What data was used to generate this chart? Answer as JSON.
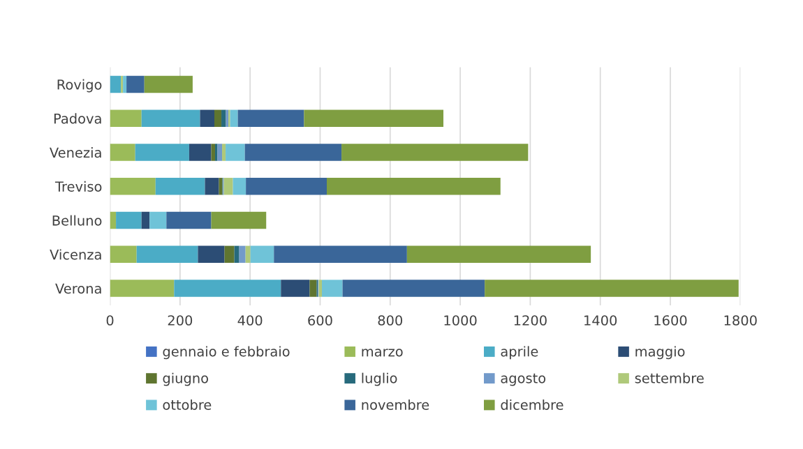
{
  "chart_data": {
    "type": "bar",
    "orientation": "horizontal",
    "stacked": true,
    "categories": [
      "Rovigo",
      "Padova",
      "Venezia",
      "Treviso",
      "Belluno",
      "Vicenza",
      "Verona"
    ],
    "series": [
      {
        "name": "gennaio e febbraio",
        "color": "#4472c4",
        "values": [
          0,
          0,
          0,
          0,
          0,
          0,
          0
        ]
      },
      {
        "name": "marzo",
        "color": "#9bbb59",
        "values": [
          0,
          90,
          72,
          130,
          17,
          76,
          183
        ]
      },
      {
        "name": "aprile",
        "color": "#4bacc6",
        "values": [
          31,
          167,
          154,
          141,
          73,
          175,
          305
        ]
      },
      {
        "name": "maggio",
        "color": "#2c4d75",
        "values": [
          0,
          41,
          63,
          40,
          23,
          76,
          82
        ]
      },
      {
        "name": "giugno",
        "color": "#5f7530",
        "values": [
          0,
          20,
          11,
          10,
          0,
          28,
          20
        ]
      },
      {
        "name": "luglio",
        "color": "#276a7c",
        "values": [
          0,
          13,
          7,
          2,
          0,
          14,
          4
        ]
      },
      {
        "name": "agosto",
        "color": "#729aca",
        "values": [
          0,
          7,
          13,
          2,
          0,
          18,
          2
        ]
      },
      {
        "name": "settembre",
        "color": "#afc97a",
        "values": [
          6,
          5,
          10,
          26,
          0,
          14,
          9
        ]
      },
      {
        "name": "ottobre",
        "color": "#6fc3d8",
        "values": [
          10,
          22,
          55,
          37,
          48,
          67,
          59
        ]
      },
      {
        "name": "novembre",
        "color": "#3a6699",
        "values": [
          51,
          189,
          276,
          231,
          128,
          380,
          406
        ]
      },
      {
        "name": "dicembre",
        "color": "#7f9e41",
        "values": [
          138,
          398,
          533,
          496,
          157,
          525,
          725
        ]
      }
    ],
    "xlim": [
      0,
      1800
    ],
    "xticks": [
      0,
      200,
      400,
      600,
      800,
      1000,
      1200,
      1400,
      1600,
      1800
    ],
    "grid": "x",
    "legend": "bottom"
  }
}
